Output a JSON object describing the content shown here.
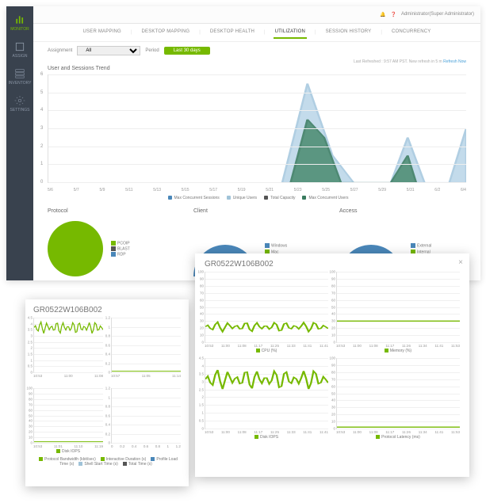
{
  "topbar": {
    "user": "Administrator(Super Administrator)"
  },
  "sidebar": {
    "items": [
      {
        "label": "MONITOR"
      },
      {
        "label": "ASSIGN"
      },
      {
        "label": "INVENTORY"
      },
      {
        "label": "SETTINGS"
      }
    ]
  },
  "tabs": {
    "items": [
      "USER MAPPING",
      "DESKTOP MAPPING",
      "DESKTOP HEALTH",
      "UTILIZATION",
      "SESSION HISTORY",
      "CONCURRENCY"
    ],
    "active": 3
  },
  "filters": {
    "assignment_label": "Assignment",
    "assignment_value": "All",
    "period_label": "Period",
    "period_value": "Last 30 days"
  },
  "refresh": {
    "text": "Last Refreshed : 9:57 AM PST. New refresh in 5 m ",
    "link": "Refresh Now"
  },
  "trend": {
    "title": "User and Sessions Trend",
    "yticks": [
      0,
      1,
      2,
      3,
      4,
      5,
      6
    ],
    "xticks": [
      "5/6",
      "5/7",
      "5/9",
      "5/11",
      "5/13",
      "5/15",
      "5/17",
      "5/19",
      "5/21",
      "5/23",
      "5/25",
      "5/27",
      "5/29",
      "5/31",
      "6/2",
      "6/4"
    ],
    "legend": [
      {
        "color": "#4a87b9",
        "label": "Max Concurrent Sessions"
      },
      {
        "color": "#a0c3d8",
        "label": "Unique Users"
      },
      {
        "color": "#555",
        "label": "Total Capacity"
      },
      {
        "color": "#3a7b5f",
        "label": "Max Concurrent Users"
      }
    ],
    "series": {
      "light_blue": {
        "color": "#a3c6de",
        "fill": "#b9d5e8",
        "points": [
          [
            0.56,
            0
          ],
          [
            0.62,
            5.5
          ],
          [
            0.68,
            1.5
          ],
          [
            0.73,
            0
          ],
          [
            0.82,
            0
          ],
          [
            0.86,
            2.5
          ],
          [
            0.9,
            0
          ],
          [
            0.96,
            0
          ],
          [
            1.0,
            3
          ]
        ]
      },
      "dark_teal": {
        "color": "#3a7b5f",
        "fill": "#4a8b6f",
        "points": [
          [
            0.58,
            0
          ],
          [
            0.62,
            3.5
          ],
          [
            0.66,
            2.5
          ],
          [
            0.7,
            0
          ],
          [
            0.82,
            0
          ],
          [
            0.86,
            1.5
          ],
          [
            0.88,
            0
          ]
        ]
      }
    }
  },
  "panels": {
    "protocol": {
      "title": "Protocol",
      "legend": [
        {
          "color": "#76b900",
          "label": "PCOIP"
        },
        {
          "color": "#555",
          "label": "BLAST"
        },
        {
          "color": "#4a87b9",
          "label": "RDP"
        }
      ]
    },
    "client": {
      "title": "Client",
      "legend": [
        {
          "color": "#4a87b9",
          "label": "Windows"
        },
        {
          "color": "#76b900",
          "label": "Mac"
        }
      ]
    },
    "access": {
      "title": "Access",
      "legend": [
        {
          "color": "#4a87b9",
          "label": "External"
        },
        {
          "color": "#76b900",
          "label": "Internal"
        }
      ]
    }
  },
  "popup_right": {
    "title": "GR0522W106B002",
    "charts": [
      {
        "caption": "CPU (%)",
        "yticks": [
          0,
          10,
          20,
          30,
          40,
          50,
          60,
          70,
          80,
          90,
          100
        ],
        "xticks": [
          "10:53",
          "11:00",
          "11:08",
          "11:17",
          "11:25",
          "11:33",
          "11:41",
          "11:41"
        ],
        "pattern": "wavy",
        "baseline": 0.22,
        "amp": 0.09
      },
      {
        "caption": "Memory (%)",
        "yticks": [
          0,
          10,
          20,
          30,
          40,
          50,
          60,
          70,
          80,
          90,
          100
        ],
        "xticks": [
          "10:53",
          "11:00",
          "11:08",
          "11:17",
          "11:26",
          "11:34",
          "11:41",
          "11:53"
        ],
        "pattern": "flat",
        "baseline": 0.3,
        "amp": 0.0
      },
      {
        "caption": "Disk IOPS",
        "yticks": [
          0,
          0.5,
          1,
          1.5,
          2,
          2.5,
          3,
          3.5,
          4,
          4.5
        ],
        "xticks": [
          "10:53",
          "11:00",
          "11:08",
          "11:17",
          "11:25",
          "11:33",
          "11:41",
          "11:41"
        ],
        "pattern": "wavy",
        "baseline": 0.7,
        "amp": 0.18
      },
      {
        "caption": "Protocol Latency (ms)",
        "yticks": [
          0,
          10,
          20,
          30,
          40,
          50,
          60,
          70,
          80,
          90,
          100
        ],
        "xticks": [
          "10:53",
          "11:00",
          "11:08",
          "11:17",
          "11:26",
          "11:34",
          "11:41",
          "11:53"
        ],
        "pattern": "flat",
        "baseline": 0.02,
        "amp": 0.0
      }
    ]
  },
  "popup_left": {
    "title": "GR0522W106B002",
    "charts": [
      {
        "caption": "",
        "yticks": [
          0,
          0.5,
          1,
          1.5,
          2,
          2.5,
          3,
          3.5,
          4,
          4.5
        ],
        "xticks": [
          "10:53",
          "11:00",
          "11:08"
        ],
        "pattern": "wavy",
        "baseline": 0.82,
        "amp": 0.14
      },
      {
        "caption": "",
        "yticks": [
          0,
          0.2,
          0.4,
          0.6,
          0.8,
          1,
          1.2
        ],
        "xticks": [
          "10:57",
          "11:05",
          "11:14"
        ],
        "pattern": "flat",
        "baseline": 0.02,
        "amp": 0.0
      },
      {
        "caption": "Disk IOPS",
        "yticks": [
          0,
          10,
          20,
          30,
          40,
          50,
          60,
          70,
          80,
          90,
          100
        ],
        "xticks": [
          "10:53",
          "11:01",
          "11:10",
          "11:19"
        ],
        "pattern": "flat",
        "baseline": 0.02,
        "amp": 0.0
      },
      {
        "caption": "",
        "yticks": [
          0,
          0.2,
          0.4,
          0.6,
          0.8,
          1,
          1.2
        ],
        "xticks": [
          "0",
          "0.2",
          "0.4",
          "0.6",
          "0.8",
          "1",
          "1.2"
        ],
        "pattern": "none",
        "baseline": 0,
        "amp": 0
      }
    ],
    "bottom_legend": [
      {
        "color": "#76b900",
        "label": "Protocol Bandwidth (kbit/sec)"
      },
      {
        "color": "#76b900",
        "label": "Interactive Duration (s)"
      },
      {
        "color": "#4a87b9",
        "label": "Profile Load Time (s)"
      },
      {
        "color": "#a0c3d8",
        "label": "Shell Start Time (s)"
      },
      {
        "color": "#555",
        "label": "Total Time (s)"
      }
    ]
  },
  "colors": {
    "green": "#76b900",
    "blue": "#4a87b9"
  }
}
